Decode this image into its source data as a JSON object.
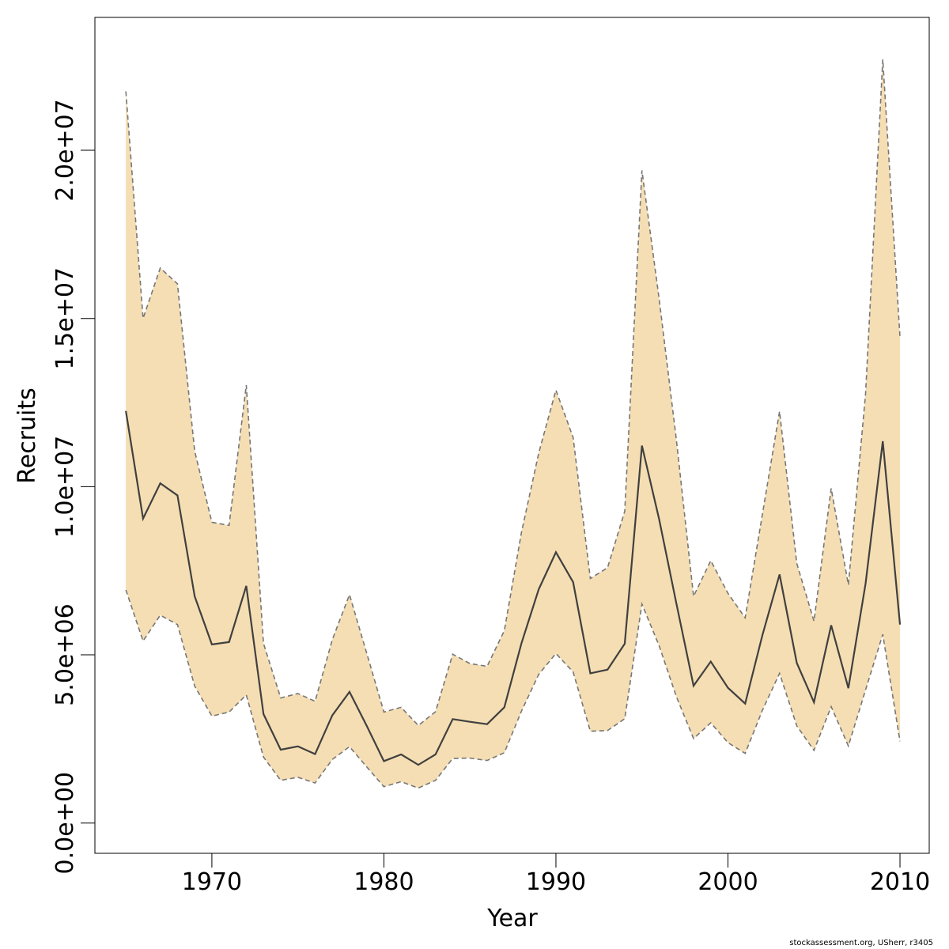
{
  "chart_data": {
    "type": "area",
    "title": "",
    "xlabel": "Year",
    "ylabel": "Recruits",
    "xlim": [
      1963.2,
      2011.7
    ],
    "ylim": [
      -900000,
      23950000
    ],
    "x_ticks": [
      1970,
      1980,
      1990,
      2000,
      2010
    ],
    "x_tick_labels": [
      "1970",
      "1980",
      "1990",
      "2000",
      "2010"
    ],
    "y_ticks": [
      0,
      5000000,
      10000000,
      15000000,
      20000000
    ],
    "y_tick_labels": [
      "0.0e+00",
      "5.0e+06",
      "1.0e+07",
      "1.5e+07",
      "2.0e+07"
    ],
    "grid": false,
    "band_color": "#f5deb3",
    "line_color": "#404040",
    "bound_color": "#777777",
    "x": [
      1965,
      1966,
      1967,
      1968,
      1969,
      1970,
      1971,
      1972,
      1973,
      1974,
      1975,
      1976,
      1977,
      1978,
      1979,
      1980,
      1981,
      1982,
      1983,
      1984,
      1985,
      1986,
      1987,
      1988,
      1989,
      1990,
      1991,
      1992,
      1993,
      1994,
      1995,
      1996,
      1997,
      1998,
      1999,
      2000,
      2001,
      2002,
      2003,
      2004,
      2005,
      2006,
      2007,
      2008,
      2009,
      2010
    ],
    "series": [
      {
        "name": "",
        "role": "estimate",
        "values": [
          12250000,
          9050000,
          10100000,
          9740000,
          6740000,
          5310000,
          5380000,
          7050000,
          3240000,
          2180000,
          2280000,
          2050000,
          3200000,
          3900000,
          2890000,
          1840000,
          2040000,
          1730000,
          2040000,
          3090000,
          3010000,
          2940000,
          3440000,
          5350000,
          6950000,
          8050000,
          7160000,
          4450000,
          4560000,
          5330000,
          11220000,
          9030000,
          6530000,
          4080000,
          4800000,
          4020000,
          3550000,
          5580000,
          7390000,
          4760000,
          3590000,
          5880000,
          4010000,
          7120000,
          11350000,
          5900000
        ]
      },
      {
        "name": "",
        "role": "upper",
        "values": [
          21750000,
          15000000,
          16500000,
          16030000,
          11060000,
          8940000,
          8850000,
          13020000,
          5340000,
          3720000,
          3850000,
          3620000,
          5450000,
          6790000,
          5050000,
          3300000,
          3440000,
          2900000,
          3310000,
          5020000,
          4740000,
          4660000,
          5720000,
          8650000,
          11000000,
          12870000,
          11460000,
          7270000,
          7590000,
          9270000,
          19400000,
          15580000,
          11400000,
          6740000,
          7800000,
          6830000,
          6100000,
          9170000,
          12240000,
          7720000,
          6000000,
          9950000,
          7080000,
          12770000,
          22700000,
          14450000
        ]
      },
      {
        "name": "",
        "role": "lower",
        "values": [
          6930000,
          5410000,
          6180000,
          5900000,
          4070000,
          3180000,
          3300000,
          3810000,
          1960000,
          1270000,
          1360000,
          1190000,
          1890000,
          2270000,
          1670000,
          1080000,
          1230000,
          1040000,
          1270000,
          1920000,
          1930000,
          1860000,
          2090000,
          3330000,
          4420000,
          5040000,
          4490000,
          2730000,
          2750000,
          3100000,
          6510000,
          5270000,
          3760000,
          2510000,
          2980000,
          2390000,
          2070000,
          3350000,
          4450000,
          2890000,
          2160000,
          3460000,
          2290000,
          3960000,
          5610000,
          2430000
        ]
      }
    ]
  },
  "footer": {
    "credit": "stockassessment.org, USherr, r3405"
  }
}
